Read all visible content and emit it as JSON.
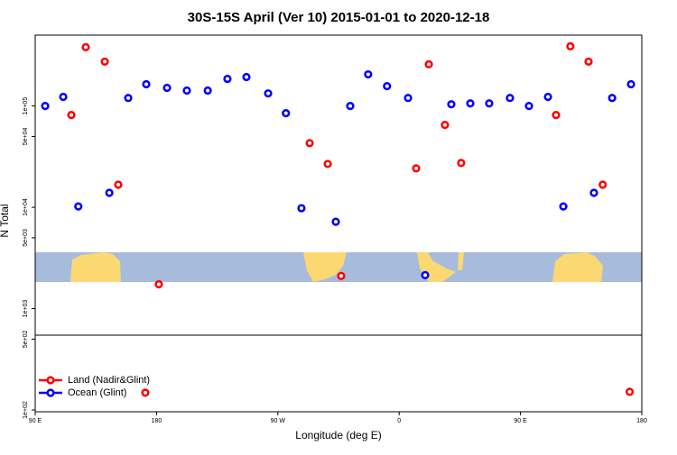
{
  "chart_data": {
    "type": "scatter",
    "title": "30S-15S April (Ver 10)   2015-01-01 to 2020-12-18",
    "x_label": "Longitude (deg E)",
    "y_label": "N Total",
    "xlim": [
      90,
      540
    ],
    "xticks": [
      {
        "value": 90,
        "label": "90 E"
      },
      180,
      {
        "value": 270,
        "label": "90 W"
      },
      {
        "value": 360,
        "label": "0"
      },
      {
        "value": 450,
        "label": "90 E"
      },
      {
        "value": 540,
        "label": "180"
      }
    ],
    "ylim": [
      96,
      500000
    ],
    "log_y": true,
    "yticks": [
      {
        "value": 100,
        "label": "1e+02"
      },
      {
        "value": 500,
        "label": "5e+02"
      },
      {
        "value": 1000,
        "label": "1e+03"
      },
      {
        "value": 5000,
        "label": "5e+03"
      },
      {
        "value": 10000,
        "label": "1e+04"
      },
      {
        "value": 50000,
        "label": "5e+04"
      },
      {
        "value": 100000,
        "label": "1e+05"
      }
    ],
    "legend": "lower left",
    "series": [
      {
        "name": "Land (Nadir&Glint)",
        "color": "#ff0000",
        "x": [
          127.5,
          141.6,
          116.8,
          151.6,
          181.7,
          171.7,
          293.6,
          307,
          317,
          372.6,
          382,
          394,
          406,
          476.4,
          487,
          500.5,
          511,
          531
        ],
        "values": [
          380000,
          274000,
          81400,
          16700,
          1740,
          148,
          43000,
          26800,
          2100,
          24200,
          258000,
          65000,
          27400,
          81400,
          388000,
          274000,
          16700,
          151
        ]
      },
      {
        "name": "Ocean (Glint)",
        "color": "#0000ff",
        "x": [
          97.4,
          110.8,
          122,
          145,
          159,
          172.4,
          187.8,
          202.5,
          218,
          232.6,
          246.7,
          262.8,
          276,
          287.5,
          313,
          323.7,
          337,
          351,
          366.6,
          379.3,
          398.7,
          412.8,
          426.8,
          442.2,
          456.3,
          470.4,
          481.8,
          504.5,
          518,
          532
        ],
        "values": [
          100000,
          123000,
          10200,
          13900,
          120000,
          164000,
          151000,
          142000,
          142000,
          185000,
          193000,
          133000,
          84900,
          9800,
          7200,
          100000,
          205000,
          157000,
          120000,
          2140,
          104000,
          106000,
          106000,
          120000,
          100000,
          123000,
          10200,
          13900,
          120000,
          164000
        ]
      }
    ]
  }
}
